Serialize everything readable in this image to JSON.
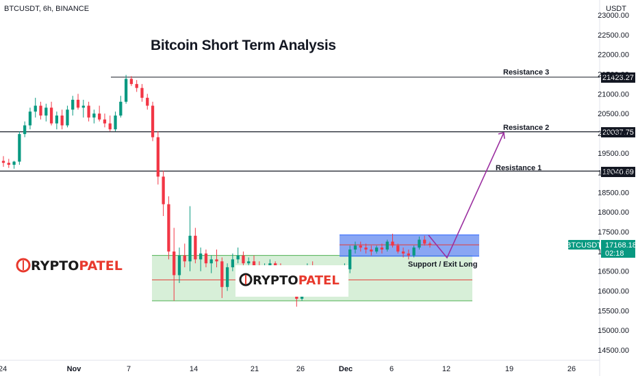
{
  "header": {
    "symbol_line": "BTCUSDT, 6h, BINANCE",
    "currency": "USDT"
  },
  "title": "Bitcoin Short Term Analysis",
  "branding": {
    "logo_a": "CRYPTOPATEL",
    "logo_b": "CRYPTOPATEL",
    "accent": "#e8392d",
    "dark": "#1b1b1b"
  },
  "price_badge": {
    "symbol": "BTCUSDT",
    "price": "17168.18",
    "countdown": "02:18",
    "color": "#089981"
  },
  "chart_data": {
    "type": "candlestick",
    "title": "Bitcoin Short Term Analysis",
    "ylim": [
      14200,
      23500
    ],
    "y_ticks": [
      "23000.00",
      "22500.00",
      "22000.00",
      "21500.00",
      "21000.00",
      "20500.00",
      "20000.00",
      "19500.00",
      "19000.00",
      "18500.00",
      "18000.00",
      "17500.00",
      "17000.00",
      "16500.00",
      "16000.00",
      "15500.00",
      "15000.00",
      "14500.00"
    ],
    "x_ticks": [
      "24",
      "Nov",
      "7",
      "14",
      "21",
      "26",
      "Dec",
      "6",
      "12",
      "19",
      "26"
    ],
    "levels": [
      {
        "label": "Resistance 3",
        "price": "21423.27",
        "value": 21423.27
      },
      {
        "label": "Resistance 2",
        "price": "20037.75",
        "value": 20037.75
      },
      {
        "label": "Resistance 1",
        "price": "19040.69",
        "value": 19040.69
      }
    ],
    "zones": [
      {
        "name": "support-zone",
        "top": 16900,
        "bottom": 15750,
        "mid": 16280,
        "color": "#b7e1b8"
      },
      {
        "name": "range-zone",
        "top": 17420,
        "bottom": 16880,
        "mid": 17170,
        "color": "#7c9cf2"
      }
    ],
    "annotations": [
      "Support / Exit Long"
    ],
    "candles": [
      [
        19300,
        19420,
        19150,
        19250
      ],
      [
        19250,
        19350,
        19120,
        19200
      ],
      [
        19200,
        19300,
        19100,
        19280
      ],
      [
        19280,
        20050,
        19200,
        19980
      ],
      [
        19980,
        20300,
        19900,
        20200
      ],
      [
        20200,
        20650,
        20100,
        20550
      ],
      [
        20550,
        20900,
        20400,
        20700
      ],
      [
        20700,
        20800,
        20350,
        20450
      ],
      [
        20450,
        20750,
        20300,
        20650
      ],
      [
        20650,
        20800,
        20200,
        20250
      ],
      [
        20250,
        20550,
        20100,
        20450
      ],
      [
        20450,
        20600,
        20100,
        20200
      ],
      [
        20200,
        20700,
        20150,
        20600
      ],
      [
        20600,
        20950,
        20450,
        20850
      ],
      [
        20850,
        21000,
        20600,
        20650
      ],
      [
        20650,
        20850,
        20400,
        20700
      ],
      [
        20700,
        20800,
        20300,
        20400
      ],
      [
        20400,
        20600,
        20250,
        20500
      ],
      [
        20500,
        20700,
        20300,
        20350
      ],
      [
        20350,
        20500,
        20150,
        20250
      ],
      [
        20250,
        20450,
        20050,
        20100
      ],
      [
        20100,
        20550,
        20050,
        20450
      ],
      [
        20450,
        20950,
        20400,
        20800
      ],
      [
        20800,
        21480,
        20750,
        21380
      ],
      [
        21380,
        21450,
        21200,
        21250
      ],
      [
        21250,
        21350,
        21050,
        21150
      ],
      [
        21150,
        21250,
        20800,
        20900
      ],
      [
        20900,
        21000,
        20600,
        20700
      ],
      [
        20700,
        20800,
        19800,
        19900
      ],
      [
        19900,
        20050,
        18700,
        18900
      ],
      [
        18900,
        19050,
        17900,
        18200
      ],
      [
        18200,
        18400,
        16800,
        17000
      ],
      [
        17000,
        17600,
        15750,
        16400
      ],
      [
        16400,
        17100,
        16200,
        16900
      ],
      [
        16900,
        17200,
        16600,
        16750
      ],
      [
        16750,
        18150,
        16500,
        17400
      ],
      [
        17400,
        17600,
        16700,
        16800
      ],
      [
        16800,
        17100,
        16500,
        16950
      ],
      [
        16950,
        17050,
        16600,
        16700
      ],
      [
        16700,
        16900,
        16450,
        16800
      ],
      [
        16800,
        17050,
        16600,
        16750
      ],
      [
        16750,
        16850,
        15820,
        16100
      ],
      [
        16100,
        16700,
        16000,
        16600
      ],
      [
        16600,
        16950,
        16500,
        16800
      ],
      [
        16800,
        17100,
        16700,
        16900
      ],
      [
        16900,
        17000,
        16600,
        16700
      ],
      [
        16700,
        16850,
        16550,
        16750
      ],
      [
        16750,
        16900,
        16600,
        16650
      ],
      [
        16650,
        16750,
        16450,
        16550
      ],
      [
        16550,
        16700,
        16400,
        16600
      ],
      [
        16600,
        16800,
        16500,
        16700
      ],
      [
        16700,
        16750,
        16450,
        16500
      ],
      [
        16500,
        16700,
        16300,
        16450
      ],
      [
        16450,
        16550,
        16200,
        16300
      ],
      [
        16300,
        16450,
        15950,
        16050
      ],
      [
        16050,
        16200,
        15600,
        15800
      ],
      [
        15800,
        16350,
        15750,
        16250
      ],
      [
        16250,
        16700,
        16150,
        16550
      ],
      [
        16550,
        16750,
        16300,
        16400
      ],
      [
        16400,
        16650,
        16250,
        16550
      ],
      [
        16550,
        16650,
        16350,
        16450
      ],
      [
        16450,
        16600,
        16300,
        16500
      ],
      [
        16500,
        16600,
        16150,
        16250
      ],
      [
        16250,
        16450,
        16100,
        16350
      ],
      [
        16350,
        16700,
        16300,
        16550
      ],
      [
        16550,
        17150,
        16450,
        17050
      ],
      [
        17050,
        17250,
        16950,
        17150
      ],
      [
        17150,
        17250,
        17000,
        17100
      ],
      [
        17100,
        17200,
        16950,
        17050
      ],
      [
        17050,
        17150,
        16900,
        17000
      ],
      [
        17000,
        17150,
        16950,
        17100
      ],
      [
        17100,
        17200,
        16950,
        17050
      ],
      [
        17050,
        17300,
        17000,
        17250
      ],
      [
        17250,
        17450,
        17100,
        17150
      ],
      [
        17150,
        17200,
        16950,
        17000
      ],
      [
        17000,
        17100,
        16850,
        16950
      ],
      [
        16950,
        17050,
        16800,
        16900
      ],
      [
        16900,
        17150,
        16850,
        17100
      ],
      [
        17100,
        17380,
        17050,
        17300
      ],
      [
        17300,
        17400,
        17150,
        17200
      ],
      [
        17200,
        17250,
        17100,
        17168
      ]
    ]
  }
}
